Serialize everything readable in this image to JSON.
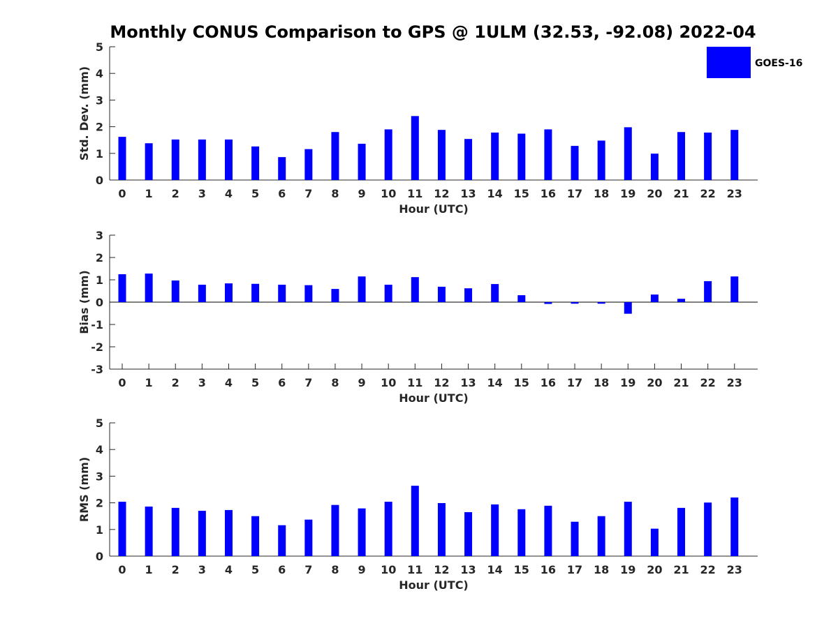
{
  "title": "Monthly CONUS Comparison to GPS @ 1ULM (32.53, -92.08) 2022-04",
  "legend": {
    "label": "GOES-16",
    "color": "#0000ff",
    "placement": "top-right"
  },
  "chart_data": [
    {
      "type": "bar",
      "xlabel": "Hour (UTC)",
      "ylabel": "Std. Dev. (mm)",
      "ylim": [
        0,
        5
      ],
      "yticks": [
        0,
        1,
        2,
        3,
        4,
        5
      ],
      "categories": [
        "0",
        "1",
        "2",
        "3",
        "4",
        "5",
        "6",
        "7",
        "8",
        "9",
        "10",
        "11",
        "12",
        "13",
        "14",
        "15",
        "16",
        "17",
        "18",
        "19",
        "20",
        "21",
        "22",
        "23"
      ],
      "series": [
        {
          "name": "GOES-16",
          "values": [
            1.62,
            1.38,
            1.52,
            1.52,
            1.52,
            1.26,
            0.86,
            1.16,
            1.8,
            1.36,
            1.9,
            2.4,
            1.88,
            1.54,
            1.78,
            1.74,
            1.9,
            1.28,
            1.48,
            1.98,
            0.99,
            1.8,
            1.78,
            1.88
          ]
        }
      ],
      "grid": false
    },
    {
      "type": "bar",
      "xlabel": "Hour (UTC)",
      "ylabel": "Bias (mm)",
      "ylim": [
        -3,
        3
      ],
      "yticks": [
        -3,
        -2,
        -1,
        0,
        1,
        2,
        3
      ],
      "categories": [
        "0",
        "1",
        "2",
        "3",
        "4",
        "5",
        "6",
        "7",
        "8",
        "9",
        "10",
        "11",
        "12",
        "13",
        "14",
        "15",
        "16",
        "17",
        "18",
        "19",
        "20",
        "21",
        "22",
        "23"
      ],
      "series": [
        {
          "name": "GOES-16",
          "values": [
            1.25,
            1.28,
            0.97,
            0.78,
            0.84,
            0.82,
            0.78,
            0.76,
            0.59,
            1.15,
            0.78,
            1.12,
            0.69,
            0.62,
            0.81,
            0.31,
            -0.08,
            -0.07,
            -0.07,
            -0.52,
            0.34,
            0.15,
            0.94,
            1.15
          ]
        }
      ],
      "grid": false
    },
    {
      "type": "bar",
      "xlabel": "Hour (UTC)",
      "ylabel": "RMS (mm)",
      "ylim": [
        0,
        5
      ],
      "yticks": [
        0,
        1,
        2,
        3,
        4,
        5
      ],
      "categories": [
        "0",
        "1",
        "2",
        "3",
        "4",
        "5",
        "6",
        "7",
        "8",
        "9",
        "10",
        "11",
        "12",
        "13",
        "14",
        "15",
        "16",
        "17",
        "18",
        "19",
        "20",
        "21",
        "22",
        "23"
      ],
      "series": [
        {
          "name": "GOES-16",
          "values": [
            2.04,
            1.86,
            1.81,
            1.7,
            1.73,
            1.5,
            1.16,
            1.37,
            1.92,
            1.79,
            2.04,
            2.64,
            1.99,
            1.65,
            1.94,
            1.76,
            1.89,
            1.29,
            1.5,
            2.04,
            1.03,
            1.81,
            2.01,
            2.2
          ]
        }
      ],
      "grid": false
    }
  ]
}
